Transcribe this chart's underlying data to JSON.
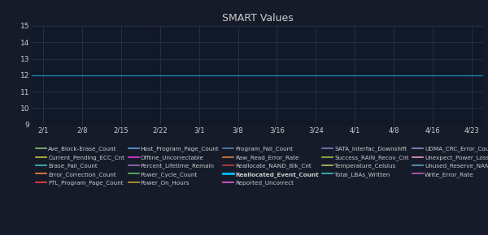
{
  "title": "SMART Values",
  "background_color": "#161b2a",
  "plot_bg_color": "#111827",
  "text_color": "#cccccc",
  "grid_color": "#2a3550",
  "title_fontsize": 9,
  "ylim": [
    9,
    15
  ],
  "yticks": [
    9,
    10,
    11,
    12,
    13,
    14,
    15
  ],
  "xtick_labels": [
    "2/1",
    "2/8",
    "2/15",
    "2/22",
    "3/1",
    "3/8",
    "3/16",
    "3/24",
    "4/1",
    "4/8",
    "4/16",
    "4/23"
  ],
  "xtick_positions": [
    0,
    1,
    2,
    3,
    4,
    5,
    6,
    7,
    8,
    9,
    10,
    11
  ],
  "highlighted_line_value": 12,
  "highlighted_line_color": "#2288cc",
  "legend_items": [
    {
      "label": "Ave_Block-Erase_Count",
      "color": "#7fbf7f"
    },
    {
      "label": "Current_Pending_ECC_Cnt",
      "color": "#bfbf3f"
    },
    {
      "label": "Erase_Fail_Count",
      "color": "#3fbfbf"
    },
    {
      "label": "Error_Correction_Count",
      "color": "#ff7f3f"
    },
    {
      "label": "FTL_Program_Page_Count",
      "color": "#ff3f3f"
    },
    {
      "label": "Host_Program_Page_Count",
      "color": "#5f9fdf"
    },
    {
      "label": "Offline_Uncorrectable",
      "color": "#df3fdf"
    },
    {
      "label": "Percent_Lifetime_Remain",
      "color": "#9f6fbf"
    },
    {
      "label": "Power_Cycle_Count",
      "color": "#5fbf5f"
    },
    {
      "label": "Power_On_Hours",
      "color": "#c0a030"
    },
    {
      "label": "Program_Fail_Count",
      "color": "#5f7fbf"
    },
    {
      "label": "Raw_Read_Error_Rate",
      "color": "#df7f3f"
    },
    {
      "label": "Reallocate_NAND_Blk_Cnt",
      "color": "#bf3f3f"
    },
    {
      "label": "Reallocated_Event_Count",
      "color": "#00bfff",
      "bold": true
    },
    {
      "label": "Reported_Uncorrect",
      "color": "#df5fdf"
    },
    {
      "label": "SATA_Interfac_Downshift",
      "color": "#7f7fbf"
    },
    {
      "label": "Success_RAIN_Recov_Cnt",
      "color": "#9fbf3f"
    },
    {
      "label": "Temperature_Celsius",
      "color": "#bfbf5f"
    },
    {
      "label": "Total_LBAs_Written",
      "color": "#3fbfbf"
    },
    {
      "label": "UDMA_CRC_Error_Count",
      "color": "#8f8fbf"
    },
    {
      "label": "Unexpect_Power_Loss_Ct",
      "color": "#df9fbf"
    },
    {
      "label": "Unused_Reserve_NAND_Blk",
      "color": "#5f9fbf"
    },
    {
      "label": "Write_Error_Rate",
      "color": "#bf5fbf"
    }
  ]
}
